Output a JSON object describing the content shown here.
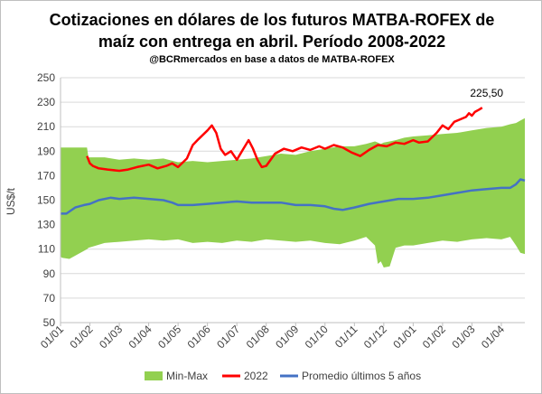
{
  "chart_data": {
    "type": "area+line",
    "title_line1": "Cotizaciones en dólares de los futuros MATBA-ROFEX de",
    "title_line2": "maíz con entrega en abril. Período 2008-2022",
    "subtitle": "@BCRmercados en base a datos de MATBA-ROFEX",
    "ylabel": "US$/t",
    "ylim": [
      50,
      250
    ],
    "yticks": [
      "50",
      "70",
      "90",
      "110",
      "130",
      "150",
      "170",
      "190",
      "210",
      "230",
      "250"
    ],
    "xticks": [
      "01/01",
      "01/02",
      "01/03",
      "01/04",
      "01/05",
      "01/06",
      "01/07",
      "01/08",
      "01/09",
      "01/10",
      "01/11",
      "01/12",
      "01/01",
      "01/02",
      "01/03",
      "01/04"
    ],
    "x_range_months": [
      0,
      15.8
    ],
    "annotation": {
      "text": "225,50",
      "x": 14.5,
      "y": 225.5
    },
    "colors": {
      "band": "#92d050",
      "series2022": "#ff0000",
      "average": "#4472c4",
      "grid": "#d9d9d9",
      "axis": "#bfbfbf"
    },
    "series": [
      {
        "name": "Min-Max",
        "kind": "band",
        "x": [
          0,
          0.05,
          0.3,
          0.9,
          0.95,
          1.5,
          2.0,
          2.5,
          3.0,
          3.5,
          4.0,
          4.5,
          5.0,
          5.5,
          6.0,
          6.5,
          7.0,
          7.5,
          8.0,
          8.5,
          9.0,
          9.5,
          10.0,
          10.4,
          10.7,
          10.8,
          10.9,
          11.0,
          11.2,
          11.4,
          11.7,
          12.0,
          12.5,
          13.0,
          13.5,
          14.0,
          14.5,
          15.0,
          15.3,
          15.5,
          15.65,
          15.8
        ],
        "min": [
          104,
          103,
          102,
          110,
          111,
          115,
          116,
          117,
          118,
          117,
          118,
          115,
          116,
          115,
          117,
          116,
          118,
          117,
          116,
          117,
          115,
          114,
          117,
          120,
          113,
          98,
          100,
          95,
          96,
          111,
          113,
          113,
          115,
          117,
          116,
          118,
          119,
          118,
          120,
          113,
          107,
          106
        ],
        "max": [
          193,
          193,
          193,
          193,
          185,
          185,
          183,
          184,
          183,
          184,
          181,
          182,
          181,
          182,
          183,
          184,
          186,
          188,
          187,
          190,
          192,
          194,
          194,
          196,
          198,
          197,
          196,
          197,
          198,
          199,
          201,
          202,
          203,
          204,
          205,
          207,
          209,
          210,
          212,
          213,
          215,
          217
        ]
      },
      {
        "name": "2022",
        "kind": "line",
        "x": [
          0.9,
          1.0,
          1.1,
          1.3,
          1.6,
          2.0,
          2.3,
          2.6,
          3.0,
          3.3,
          3.6,
          3.8,
          4.0,
          4.3,
          4.5,
          4.7,
          5.0,
          5.15,
          5.3,
          5.45,
          5.6,
          5.8,
          6.0,
          6.2,
          6.4,
          6.55,
          6.7,
          6.85,
          7.0,
          7.3,
          7.6,
          7.9,
          8.2,
          8.5,
          8.8,
          9.0,
          9.3,
          9.6,
          9.9,
          10.2,
          10.5,
          10.8,
          11.1,
          11.4,
          11.7,
          12.0,
          12.2,
          12.5,
          12.8,
          13.0,
          13.2,
          13.4,
          13.6,
          13.8,
          13.9,
          14.0,
          14.1,
          14.25,
          14.35
        ],
        "values": [
          186,
          180,
          178,
          176,
          175,
          174,
          175,
          177,
          179,
          176,
          178,
          180,
          177,
          184,
          195,
          200,
          207,
          211,
          205,
          192,
          187,
          190,
          183,
          191,
          199,
          192,
          183,
          177,
          178,
          188,
          192,
          190,
          193,
          191,
          194,
          192,
          195,
          193,
          189,
          186,
          191,
          195,
          194,
          197,
          196,
          199,
          197,
          198,
          205,
          211,
          208,
          214,
          216,
          218,
          221,
          219,
          222,
          224,
          225.5
        ]
      },
      {
        "name": "Promedio últimos 5 años",
        "kind": "line",
        "x": [
          0,
          0.2,
          0.5,
          0.8,
          1.0,
          1.3,
          1.7,
          2.0,
          2.5,
          3.0,
          3.5,
          3.8,
          4.0,
          4.5,
          5.0,
          5.5,
          6.0,
          6.5,
          7.0,
          7.5,
          8.0,
          8.5,
          9.0,
          9.3,
          9.6,
          10.0,
          10.5,
          11.0,
          11.5,
          12.0,
          12.5,
          13.0,
          13.5,
          14.0,
          14.5,
          15.0,
          15.3,
          15.5,
          15.65,
          15.8
        ],
        "values": [
          139,
          139,
          144,
          146,
          147,
          150,
          152,
          151,
          152,
          151,
          150,
          148,
          146,
          146,
          147,
          148,
          149,
          148,
          148,
          148,
          146,
          146,
          145,
          143,
          142,
          144,
          147,
          149,
          151,
          151,
          152,
          154,
          156,
          158,
          159,
          160,
          160,
          163,
          167,
          166
        ]
      }
    ],
    "legend": [
      "Min-Max",
      "2022",
      "Promedio últimos 5 años"
    ]
  }
}
